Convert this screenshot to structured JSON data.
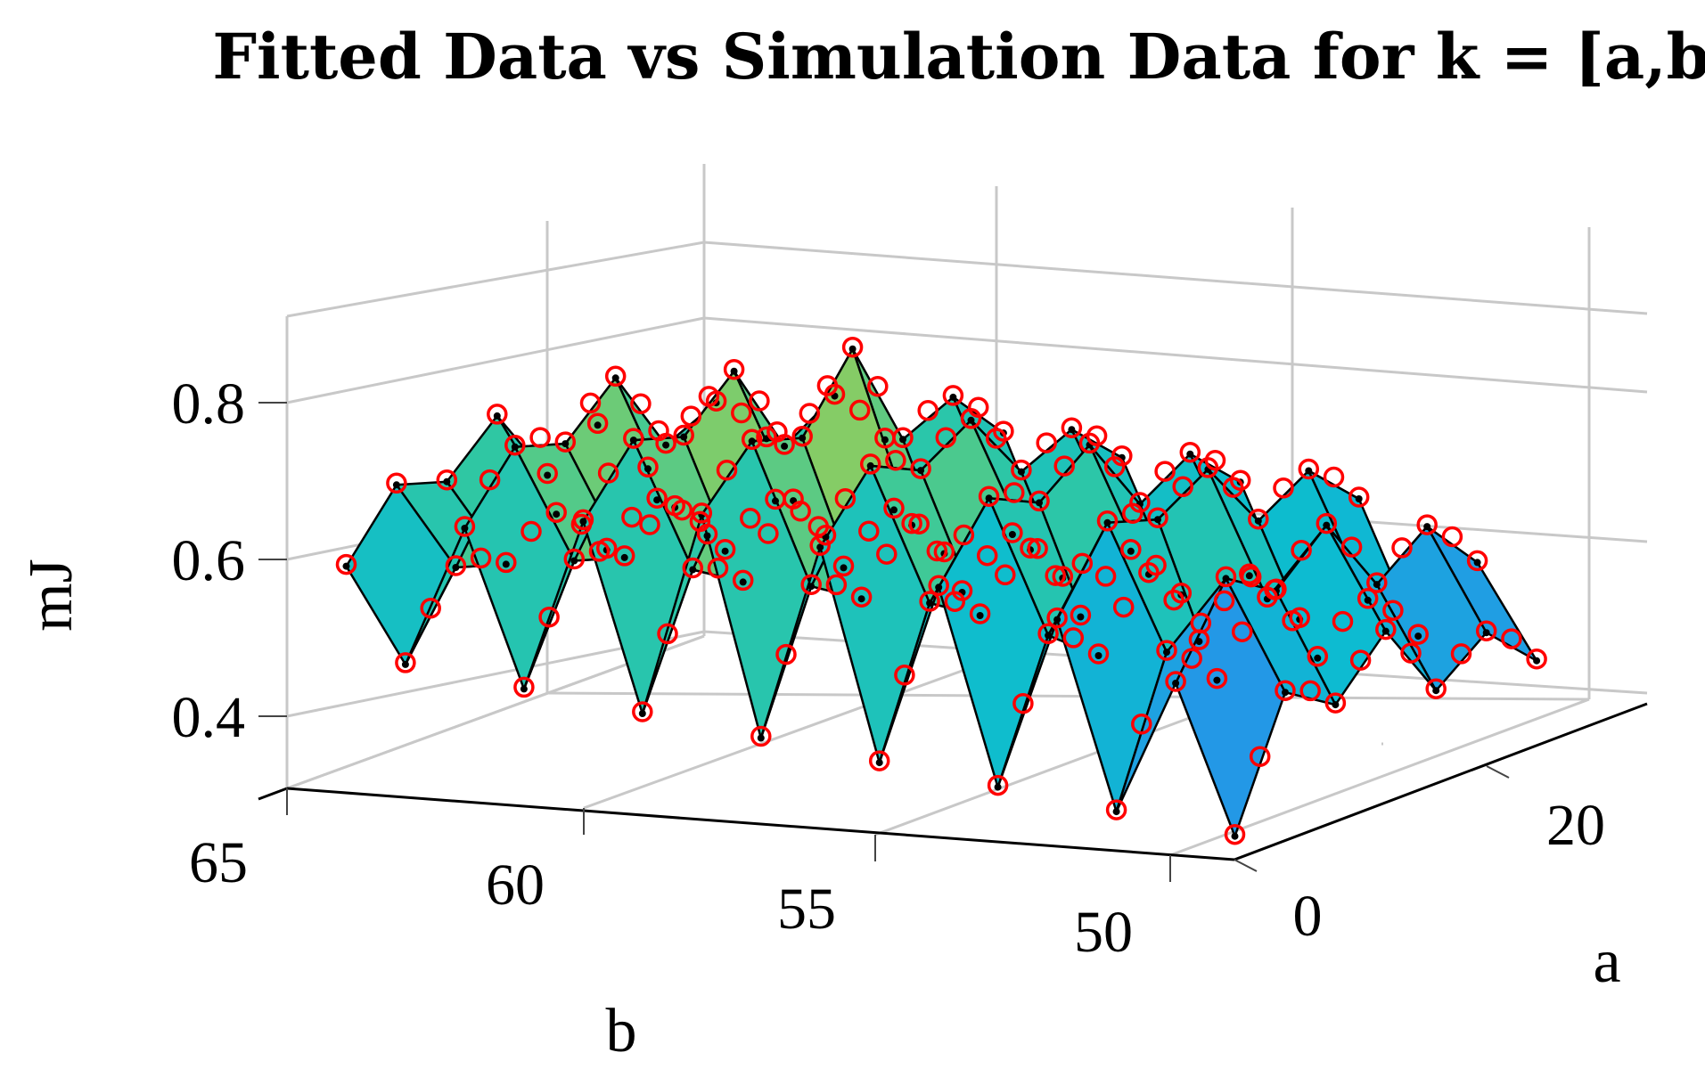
{
  "chart_data": {
    "type": "surface3d",
    "title": "Fitted Data vs Simulation Data for k = [a,b]",
    "xlabel": "a",
    "ylabel": "b",
    "zlabel": "mJ",
    "a_ticks": [
      "0",
      "20"
    ],
    "b_ticks": [
      "65",
      "60",
      "55",
      "50"
    ],
    "z_ticks": [
      "0.4",
      "0.6",
      "0.8"
    ],
    "a_range": [
      0,
      35
    ],
    "b_range": [
      48,
      65
    ],
    "z_range": [
      0.33,
      0.9
    ],
    "grid": true,
    "colormap": "parula",
    "series": [
      {
        "name": "Fitted Data",
        "style": "surface"
      },
      {
        "name": "Simulation Data",
        "style": "red circle markers"
      }
    ],
    "surface": {
      "a": [
        0,
        5,
        10,
        15,
        20,
        25,
        30
      ],
      "b": [
        49,
        50,
        51,
        52,
        53,
        54,
        55,
        56,
        57,
        58,
        59,
        60,
        61,
        62,
        63,
        64
      ],
      "mJ_by_b_row": [
        [
          0.36,
          0.52,
          0.48,
          0.55,
          0.45,
          0.5,
          0.44
        ],
        [
          0.55,
          0.66,
          0.62,
          0.68,
          0.58,
          0.63,
          0.56
        ],
        [
          0.38,
          0.56,
          0.5,
          0.58,
          0.48,
          0.53,
          0.46
        ],
        [
          0.62,
          0.72,
          0.7,
          0.74,
          0.65,
          0.69,
          0.63
        ],
        [
          0.4,
          0.57,
          0.52,
          0.6,
          0.49,
          0.55,
          0.47
        ],
        [
          0.65,
          0.74,
          0.71,
          0.76,
          0.66,
          0.7,
          0.64
        ],
        [
          0.42,
          0.6,
          0.56,
          0.62,
          0.51,
          0.57,
          0.49
        ],
        [
          0.69,
          0.77,
          0.74,
          0.78,
          0.69,
          0.72,
          0.66
        ],
        [
          0.44,
          0.61,
          0.57,
          0.64,
          0.53,
          0.58,
          0.5
        ],
        [
          0.72,
          0.79,
          0.77,
          0.86,
          0.72,
          0.75,
          0.68
        ],
        [
          0.46,
          0.62,
          0.58,
          0.66,
          0.55,
          0.6,
          0.52
        ],
        [
          0.7,
          0.78,
          0.76,
          0.82,
          0.7,
          0.74,
          0.66
        ],
        [
          0.48,
          0.62,
          0.6,
          0.64,
          0.56,
          0.6,
          0.53
        ],
        [
          0.68,
          0.76,
          0.74,
          0.8,
          0.69,
          0.72,
          0.65
        ],
        [
          0.5,
          0.6,
          0.58,
          0.62,
          0.55,
          0.59,
          0.52
        ],
        [
          0.62,
          0.7,
          0.68,
          0.74,
          0.64,
          0.68,
          0.6
        ]
      ]
    }
  }
}
